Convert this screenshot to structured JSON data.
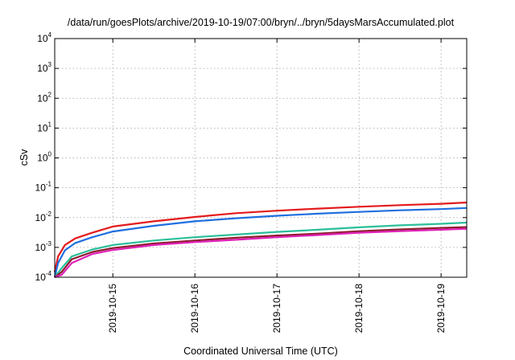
{
  "chart_data": {
    "type": "line",
    "title": "/data/run/goesPlots/archive/2019-10-19/07:00/bryn/../bryn/5daysMarsAccumulated.plot",
    "xlabel": "Coordinated Universal Time (UTC)",
    "ylabel": "cSv",
    "y_scale": "log",
    "ylim_exponents": [
      -4,
      4
    ],
    "y_tick_base": "10",
    "y_tick_exponents": [
      "-4",
      "-3",
      "-2",
      "-1",
      "0",
      "1",
      "2",
      "3",
      "4"
    ],
    "xlim": [
      "2019-10-14T07:00",
      "2019-10-19T07:30"
    ],
    "x_tick_labels": [
      "2019-10-15",
      "2019-10-16",
      "2019-10-17",
      "2019-10-18",
      "2019-10-19"
    ],
    "grid": true,
    "series": [
      {
        "color": "#e41a1c",
        "x": [
          "2019-10-14T07:00",
          "2019-10-14T08:00",
          "2019-10-14T10:00",
          "2019-10-14T13:00",
          "2019-10-14T18:00",
          "2019-10-15T00:00",
          "2019-10-15T12:00",
          "2019-10-16T00:00",
          "2019-10-16T12:00",
          "2019-10-17T00:00",
          "2019-10-17T12:00",
          "2019-10-18T00:00",
          "2019-10-18T12:00",
          "2019-10-19T00:00",
          "2019-10-19T07:30"
        ],
        "values": [
          0.00015,
          0.0005,
          0.0012,
          0.002,
          0.0031,
          0.005,
          0.0075,
          0.0105,
          0.014,
          0.017,
          0.02,
          0.023,
          0.026,
          0.029,
          0.032
        ]
      },
      {
        "color": "#1f6fe0",
        "x": [
          "2019-10-14T07:00",
          "2019-10-14T08:00",
          "2019-10-14T10:00",
          "2019-10-14T13:00",
          "2019-10-14T18:00",
          "2019-10-15T00:00",
          "2019-10-15T12:00",
          "2019-10-16T00:00",
          "2019-10-16T12:00",
          "2019-10-17T00:00",
          "2019-10-17T12:00",
          "2019-10-18T00:00",
          "2019-10-18T12:00",
          "2019-10-19T00:00",
          "2019-10-19T07:30"
        ],
        "values": [
          0.0001,
          0.0003,
          0.0008,
          0.0014,
          0.0022,
          0.0034,
          0.0053,
          0.0075,
          0.0095,
          0.0115,
          0.0135,
          0.0155,
          0.0175,
          0.0192,
          0.021
        ]
      },
      {
        "color": "#2bbf9a",
        "x": [
          "2019-10-14T07:00",
          "2019-10-14T09:00",
          "2019-10-14T12:00",
          "2019-10-14T18:00",
          "2019-10-15T00:00",
          "2019-10-15T12:00",
          "2019-10-16T00:00",
          "2019-10-16T12:00",
          "2019-10-17T00:00",
          "2019-10-17T12:00",
          "2019-10-18T00:00",
          "2019-10-18T12:00",
          "2019-10-19T00:00",
          "2019-10-19T07:30"
        ],
        "values": [
          7e-05,
          0.0002,
          0.0005,
          0.00085,
          0.0012,
          0.0017,
          0.0022,
          0.0027,
          0.0033,
          0.0039,
          0.0047,
          0.0055,
          0.0062,
          0.0068
        ]
      },
      {
        "color": "#8e1c2c",
        "x": [
          "2019-10-14T07:00",
          "2019-10-14T09:00",
          "2019-10-14T12:00",
          "2019-10-14T18:00",
          "2019-10-15T00:00",
          "2019-10-15T12:00",
          "2019-10-16T00:00",
          "2019-10-16T12:00",
          "2019-10-17T00:00",
          "2019-10-17T12:00",
          "2019-10-18T00:00",
          "2019-10-18T12:00",
          "2019-10-19T00:00",
          "2019-10-19T07:30"
        ],
        "values": [
          6e-05,
          0.00015,
          0.0004,
          0.0007,
          0.00095,
          0.00135,
          0.0017,
          0.0021,
          0.0025,
          0.0029,
          0.0035,
          0.004,
          0.0045,
          0.0048
        ]
      },
      {
        "color": "#e020b8",
        "x": [
          "2019-10-14T07:00",
          "2019-10-14T09:00",
          "2019-10-14T12:00",
          "2019-10-14T18:00",
          "2019-10-15T00:00",
          "2019-10-15T12:00",
          "2019-10-16T00:00",
          "2019-10-16T12:00",
          "2019-10-17T00:00",
          "2019-10-17T12:00",
          "2019-10-18T00:00",
          "2019-10-18T12:00",
          "2019-10-19T00:00",
          "2019-10-19T07:30"
        ],
        "values": [
          5e-05,
          0.00012,
          0.0003,
          0.0006,
          0.00082,
          0.0012,
          0.0015,
          0.0018,
          0.0022,
          0.0026,
          0.0031,
          0.0035,
          0.0039,
          0.0042
        ]
      }
    ]
  }
}
